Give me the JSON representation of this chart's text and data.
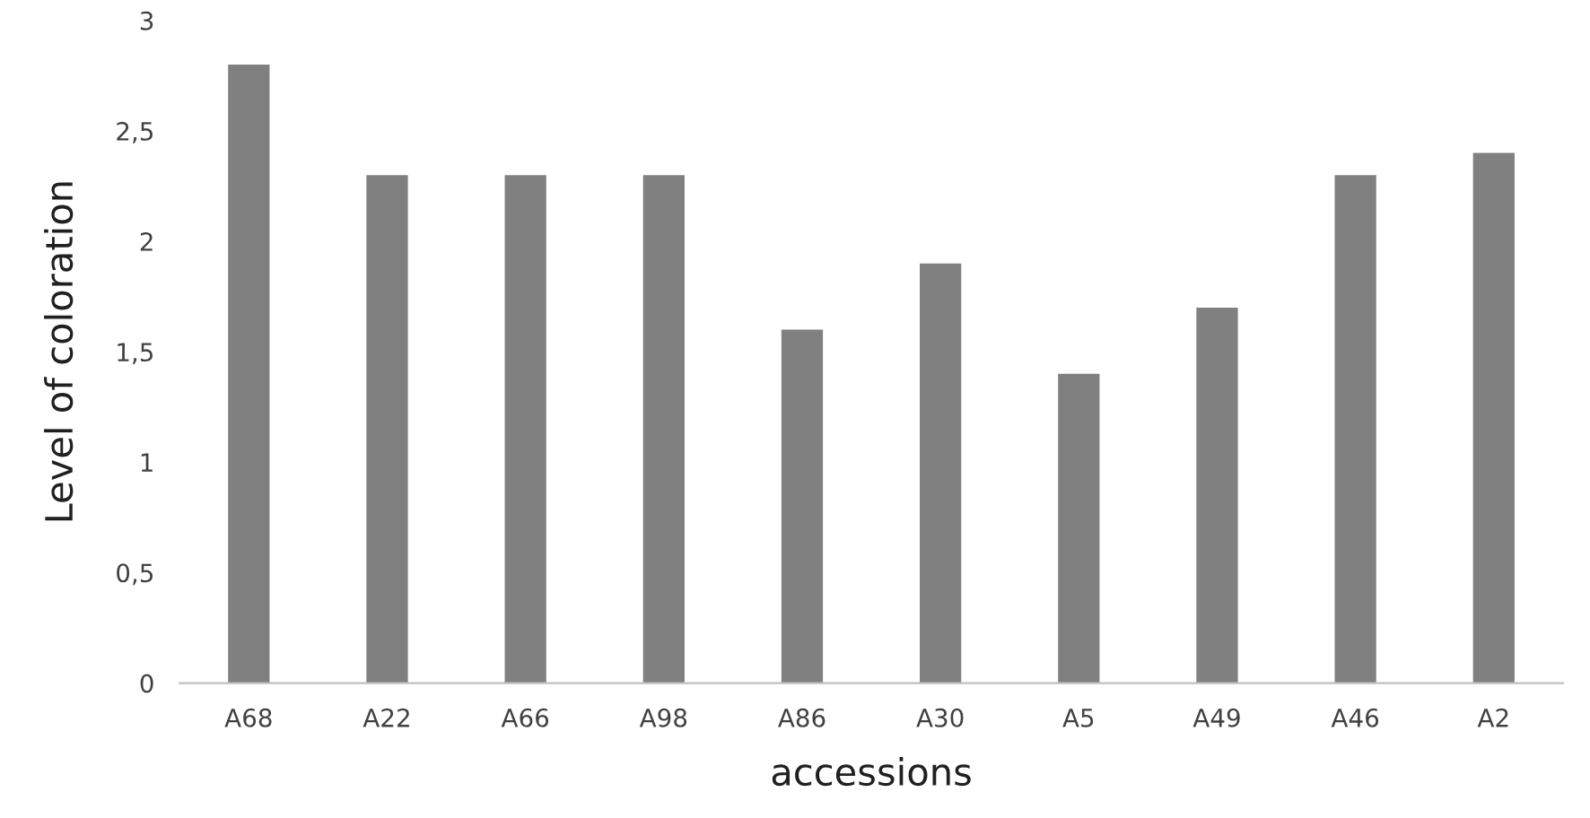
{
  "chart_data": {
    "type": "bar",
    "xlabel": "accessions",
    "ylabel": "Level of coloration",
    "categories": [
      "A68",
      "A22",
      "A66",
      "A98",
      "A86",
      "A30",
      "A5",
      "A49",
      "A46",
      "A2"
    ],
    "values": [
      2.8,
      2.3,
      2.3,
      2.3,
      1.6,
      1.9,
      1.4,
      1.7,
      2.3,
      2.4
    ],
    "color": "#808080",
    "ylim": [
      0,
      3
    ],
    "yticks": [
      0,
      {
        "value": 0.5,
        "label": "0,5"
      },
      1,
      {
        "value": 1.5,
        "label": "1,5"
      },
      2,
      {
        "value": 2.5,
        "label": "2,5"
      },
      3
    ],
    "grid": false,
    "legend": false
  }
}
